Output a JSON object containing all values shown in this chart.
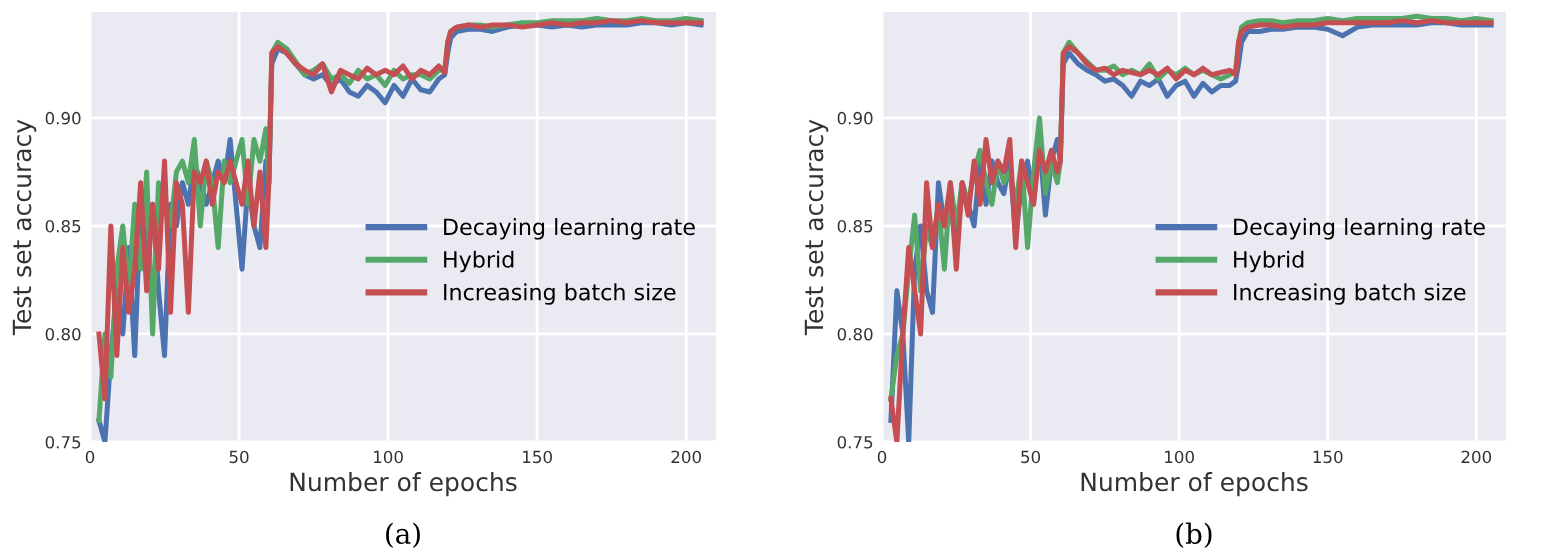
{
  "chart_data": [
    {
      "type": "line",
      "xlabel": "Number of epochs",
      "ylabel": "Test set accuracy",
      "annotations": [
        "(a)"
      ],
      "x": [
        3,
        5,
        7,
        9,
        11,
        13,
        15,
        17,
        19,
        21,
        23,
        25,
        27,
        29,
        31,
        33,
        35,
        37,
        39,
        41,
        43,
        45,
        47,
        49,
        51,
        53,
        55,
        57,
        59,
        60,
        61,
        63,
        66,
        69,
        72,
        75,
        78,
        81,
        84,
        87,
        90,
        93,
        96,
        99,
        102,
        105,
        108,
        111,
        114,
        117,
        119,
        120,
        121,
        123,
        127,
        131,
        135,
        140,
        145,
        150,
        155,
        160,
        165,
        170,
        175,
        180,
        185,
        190,
        195,
        200,
        205
      ],
      "xlim": [
        0,
        210
      ],
      "xticks": [
        0,
        50,
        100,
        150,
        200
      ],
      "ylim": [
        0.75,
        0.949
      ],
      "yticks": [
        {
          "value": 0.75,
          "label": "0.75"
        },
        {
          "value": 0.8,
          "label": "0.80"
        },
        {
          "value": 0.85,
          "label": "0.85"
        },
        {
          "value": 0.9,
          "label": "0.90"
        }
      ],
      "grid": true,
      "legend": "right",
      "marker": "none",
      "line_style": "solid",
      "series": [
        {
          "name": "Decaying learning rate",
          "color": "#4c72b0",
          "values": [
            0.76,
            0.75,
            0.79,
            0.82,
            0.8,
            0.84,
            0.79,
            0.86,
            0.84,
            0.86,
            0.82,
            0.79,
            0.86,
            0.85,
            0.87,
            0.86,
            0.88,
            0.87,
            0.86,
            0.87,
            0.88,
            0.87,
            0.89,
            0.86,
            0.83,
            0.87,
            0.85,
            0.84,
            0.88,
            0.87,
            0.925,
            0.932,
            0.93,
            0.925,
            0.92,
            0.918,
            0.92,
            0.915,
            0.918,
            0.912,
            0.91,
            0.915,
            0.912,
            0.907,
            0.915,
            0.91,
            0.918,
            0.913,
            0.912,
            0.918,
            0.92,
            0.93,
            0.937,
            0.94,
            0.941,
            0.941,
            0.94,
            0.942,
            0.943,
            0.943,
            0.942,
            0.943,
            0.942,
            0.943,
            0.943,
            0.943,
            0.944,
            0.944,
            0.943,
            0.944,
            0.943
          ]
        },
        {
          "name": "Hybrid",
          "color": "#55a868",
          "values": [
            0.76,
            0.8,
            0.78,
            0.83,
            0.85,
            0.82,
            0.86,
            0.83,
            0.875,
            0.8,
            0.87,
            0.86,
            0.85,
            0.875,
            0.88,
            0.87,
            0.89,
            0.85,
            0.88,
            0.87,
            0.84,
            0.88,
            0.87,
            0.88,
            0.89,
            0.86,
            0.89,
            0.88,
            0.895,
            0.87,
            0.93,
            0.935,
            0.932,
            0.926,
            0.92,
            0.922,
            0.925,
            0.918,
            0.92,
            0.916,
            0.922,
            0.918,
            0.92,
            0.915,
            0.922,
            0.918,
            0.92,
            0.92,
            0.918,
            0.922,
            0.922,
            0.935,
            0.94,
            0.942,
            0.943,
            0.943,
            0.942,
            0.943,
            0.944,
            0.944,
            0.945,
            0.945,
            0.945,
            0.946,
            0.945,
            0.945,
            0.946,
            0.945,
            0.945,
            0.946,
            0.945
          ]
        },
        {
          "name": "Increasing batch size",
          "color": "#c44e52",
          "values": [
            0.8,
            0.77,
            0.85,
            0.79,
            0.84,
            0.81,
            0.83,
            0.87,
            0.82,
            0.86,
            0.83,
            0.88,
            0.81,
            0.87,
            0.86,
            0.81,
            0.875,
            0.87,
            0.88,
            0.86,
            0.875,
            0.87,
            0.88,
            0.87,
            0.86,
            0.88,
            0.85,
            0.875,
            0.84,
            0.87,
            0.93,
            0.933,
            0.93,
            0.925,
            0.922,
            0.92,
            0.925,
            0.912,
            0.922,
            0.92,
            0.918,
            0.923,
            0.92,
            0.922,
            0.92,
            0.924,
            0.918,
            0.922,
            0.92,
            0.924,
            0.921,
            0.935,
            0.94,
            0.942,
            0.943,
            0.942,
            0.943,
            0.943,
            0.942,
            0.943,
            0.944,
            0.943,
            0.944,
            0.944,
            0.945,
            0.944,
            0.945,
            0.944,
            0.944,
            0.944,
            0.944
          ]
        }
      ]
    },
    {
      "type": "line",
      "xlabel": "Number of epochs",
      "ylabel": "Test set accuracy",
      "annotations": [
        "(b)"
      ],
      "x": [
        3,
        5,
        7,
        9,
        11,
        13,
        15,
        17,
        19,
        21,
        23,
        25,
        27,
        29,
        31,
        33,
        35,
        37,
        39,
        41,
        43,
        45,
        47,
        49,
        51,
        53,
        55,
        57,
        59,
        60,
        61,
        63,
        66,
        69,
        72,
        75,
        78,
        81,
        84,
        87,
        90,
        93,
        96,
        99,
        102,
        105,
        108,
        111,
        114,
        117,
        119,
        120,
        121,
        123,
        127,
        131,
        135,
        140,
        145,
        150,
        155,
        160,
        165,
        170,
        175,
        180,
        185,
        190,
        195,
        200,
        205
      ],
      "xlim": [
        0,
        210
      ],
      "xticks": [
        0,
        50,
        100,
        150,
        200
      ],
      "ylim": [
        0.75,
        0.949
      ],
      "yticks": [
        {
          "value": 0.75,
          "label": "0.75"
        },
        {
          "value": 0.8,
          "label": "0.80"
        },
        {
          "value": 0.85,
          "label": "0.85"
        },
        {
          "value": 0.9,
          "label": "0.90"
        }
      ],
      "grid": true,
      "legend": "right",
      "marker": "none",
      "line_style": "solid",
      "series": [
        {
          "name": "Decaying learning rate",
          "color": "#4c72b0",
          "values": [
            0.76,
            0.82,
            0.8,
            0.75,
            0.83,
            0.85,
            0.82,
            0.81,
            0.87,
            0.85,
            0.86,
            0.84,
            0.87,
            0.86,
            0.85,
            0.88,
            0.86,
            0.88,
            0.87,
            0.865,
            0.88,
            0.845,
            0.87,
            0.88,
            0.86,
            0.89,
            0.855,
            0.88,
            0.89,
            0.88,
            0.925,
            0.93,
            0.925,
            0.922,
            0.92,
            0.917,
            0.918,
            0.915,
            0.91,
            0.917,
            0.915,
            0.918,
            0.91,
            0.915,
            0.917,
            0.91,
            0.916,
            0.912,
            0.915,
            0.915,
            0.917,
            0.925,
            0.935,
            0.94,
            0.94,
            0.941,
            0.941,
            0.942,
            0.942,
            0.941,
            0.938,
            0.942,
            0.943,
            0.943,
            0.943,
            0.943,
            0.944,
            0.944,
            0.943,
            0.943,
            0.943
          ]
        },
        {
          "name": "Hybrid",
          "color": "#55a868",
          "values": [
            0.77,
            0.79,
            0.8,
            0.83,
            0.855,
            0.82,
            0.85,
            0.84,
            0.86,
            0.83,
            0.87,
            0.85,
            0.87,
            0.86,
            0.875,
            0.885,
            0.87,
            0.86,
            0.88,
            0.87,
            0.875,
            0.86,
            0.88,
            0.84,
            0.875,
            0.9,
            0.865,
            0.88,
            0.87,
            0.88,
            0.93,
            0.935,
            0.93,
            0.926,
            0.922,
            0.922,
            0.924,
            0.92,
            0.922,
            0.92,
            0.925,
            0.918,
            0.922,
            0.92,
            0.923,
            0.92,
            0.922,
            0.92,
            0.918,
            0.92,
            0.922,
            0.935,
            0.942,
            0.944,
            0.945,
            0.945,
            0.944,
            0.945,
            0.945,
            0.946,
            0.945,
            0.946,
            0.946,
            0.946,
            0.946,
            0.947,
            0.946,
            0.946,
            0.945,
            0.946,
            0.945
          ]
        },
        {
          "name": "Increasing batch size",
          "color": "#c44e52",
          "values": [
            0.77,
            0.75,
            0.8,
            0.84,
            0.82,
            0.8,
            0.87,
            0.84,
            0.86,
            0.85,
            0.87,
            0.83,
            0.87,
            0.855,
            0.88,
            0.86,
            0.89,
            0.87,
            0.88,
            0.875,
            0.89,
            0.84,
            0.88,
            0.87,
            0.86,
            0.885,
            0.875,
            0.885,
            0.875,
            0.88,
            0.93,
            0.933,
            0.93,
            0.925,
            0.922,
            0.923,
            0.92,
            0.922,
            0.921,
            0.92,
            0.922,
            0.92,
            0.923,
            0.918,
            0.922,
            0.92,
            0.923,
            0.92,
            0.921,
            0.922,
            0.92,
            0.935,
            0.94,
            0.942,
            0.943,
            0.943,
            0.942,
            0.943,
            0.943,
            0.944,
            0.944,
            0.944,
            0.944,
            0.944,
            0.945,
            0.944,
            0.945,
            0.944,
            0.944,
            0.944,
            0.944
          ]
        }
      ]
    }
  ]
}
